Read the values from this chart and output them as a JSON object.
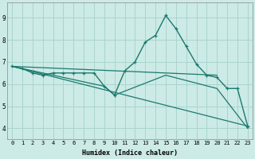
{
  "xlabel": "Humidex (Indice chaleur)",
  "ylabel": "",
  "bg_color": "#cceae6",
  "line_color": "#1a7a6e",
  "grid_color": "#aad4ce",
  "xlim": [
    -0.5,
    23.5
  ],
  "ylim": [
    3.5,
    9.7
  ],
  "xticks": [
    0,
    1,
    2,
    3,
    4,
    5,
    6,
    7,
    8,
    9,
    10,
    11,
    12,
    13,
    14,
    15,
    16,
    17,
    18,
    19,
    20,
    21,
    22,
    23
  ],
  "yticks": [
    4,
    5,
    6,
    7,
    8,
    9
  ],
  "series": [
    {
      "x": [
        0,
        1,
        2,
        3,
        4,
        5,
        6,
        7,
        8,
        9,
        10,
        11,
        12,
        13,
        14,
        15,
        16,
        17,
        18,
        19,
        20,
        21,
        22,
        23
      ],
      "y": [
        6.8,
        6.7,
        6.5,
        6.4,
        6.5,
        6.5,
        6.5,
        6.5,
        6.5,
        5.9,
        5.5,
        6.6,
        7.0,
        7.9,
        8.2,
        9.1,
        8.5,
        7.7,
        6.9,
        6.4,
        6.3,
        5.8,
        5.8,
        4.1
      ],
      "marker": true,
      "linewidth": 1.0
    },
    {
      "x": [
        0,
        20
      ],
      "y": [
        6.8,
        6.4
      ],
      "marker": false,
      "linewidth": 0.9
    },
    {
      "x": [
        0,
        9,
        10,
        15,
        20,
        23
      ],
      "y": [
        6.8,
        5.9,
        5.5,
        6.4,
        5.8,
        4.0
      ],
      "marker": false,
      "linewidth": 0.9
    },
    {
      "x": [
        0,
        23
      ],
      "y": [
        6.8,
        4.1
      ],
      "marker": false,
      "linewidth": 0.9
    }
  ]
}
